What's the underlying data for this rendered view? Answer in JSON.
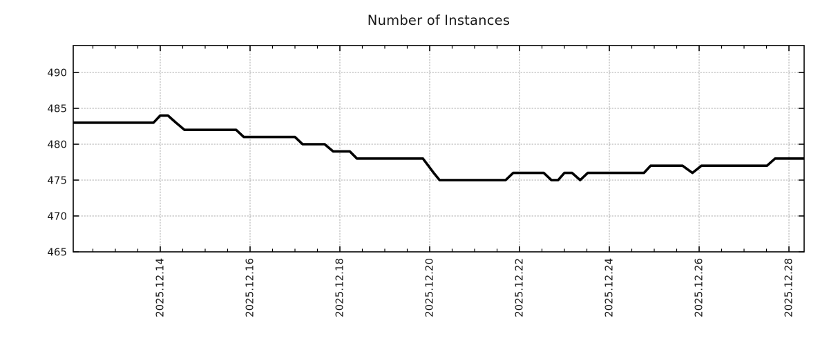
{
  "chart_data": {
    "type": "line",
    "title": "Number of Instances",
    "xlabel": "",
    "ylabel": "",
    "legend": null,
    "grid": "dotted major gridlines, both axes",
    "x_unit": "date (year 2025, month 12, fractional day of December)",
    "xlim_days": [
      12.062,
      28.338
    ],
    "ylim": [
      465,
      493.75
    ],
    "x_ticks": [
      {
        "day": 14,
        "label": "2025.12.14"
      },
      {
        "day": 16,
        "label": "2025.12.16"
      },
      {
        "day": 18,
        "label": "2025.12.18"
      },
      {
        "day": 20,
        "label": "2025.12.20"
      },
      {
        "day": 22,
        "label": "2025.12.22"
      },
      {
        "day": 24,
        "label": "2025.12.24"
      },
      {
        "day": 26,
        "label": "2025.12.26"
      },
      {
        "day": 28,
        "label": "2025.12.28"
      }
    ],
    "x_minor_tick_step_days": 0.5,
    "y_ticks": [
      {
        "value": 465,
        "label": "465"
      },
      {
        "value": 470,
        "label": "470"
      },
      {
        "value": 475,
        "label": "475"
      },
      {
        "value": 480,
        "label": "480"
      },
      {
        "value": 485,
        "label": "485"
      },
      {
        "value": 490,
        "label": "490"
      }
    ],
    "series": [
      {
        "name": "instances",
        "color": "#000000",
        "points": [
          [
            12.06,
            483
          ],
          [
            13.85,
            483
          ],
          [
            14.0,
            484
          ],
          [
            14.17,
            484
          ],
          [
            14.35,
            483
          ],
          [
            14.54,
            482
          ],
          [
            15.69,
            482
          ],
          [
            15.86,
            481
          ],
          [
            17.0,
            481
          ],
          [
            17.17,
            480
          ],
          [
            17.66,
            480
          ],
          [
            17.85,
            479
          ],
          [
            18.22,
            479
          ],
          [
            18.38,
            478
          ],
          [
            19.85,
            478
          ],
          [
            19.97,
            477
          ],
          [
            20.09,
            476
          ],
          [
            20.22,
            475
          ],
          [
            21.69,
            475
          ],
          [
            21.86,
            476
          ],
          [
            22.54,
            476
          ],
          [
            22.71,
            475
          ],
          [
            22.86,
            475
          ],
          [
            23.0,
            476
          ],
          [
            23.17,
            476
          ],
          [
            23.35,
            475
          ],
          [
            23.52,
            476
          ],
          [
            24.77,
            476
          ],
          [
            24.92,
            477
          ],
          [
            25.63,
            477
          ],
          [
            25.85,
            476
          ],
          [
            26.05,
            477
          ],
          [
            27.51,
            477
          ],
          [
            27.69,
            478
          ],
          [
            28.34,
            478
          ]
        ]
      }
    ],
    "colors": {
      "line": "#000000",
      "grid": "#ababab",
      "axis_border": "#000000",
      "text": "#1a1a1a",
      "background": "#ffffff"
    }
  }
}
